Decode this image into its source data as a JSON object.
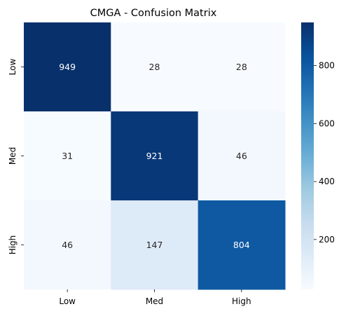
{
  "chart_data": {
    "type": "heatmap",
    "title": "CMGA - Confusion Matrix",
    "xlabel": "",
    "ylabel": "",
    "x_categories": [
      "Low",
      "Med",
      "High"
    ],
    "y_categories": [
      "Low",
      "Med",
      "High"
    ],
    "values": [
      [
        949,
        28,
        28
      ],
      [
        31,
        921,
        46
      ],
      [
        46,
        147,
        804
      ]
    ],
    "colormap": "Blues",
    "vmin": 28,
    "vmax": 949,
    "colorbar_ticks": [
      200,
      400,
      600,
      800
    ],
    "colorbar_tick_labels": [
      "200",
      "400",
      "600",
      "800"
    ],
    "colorbar": true,
    "grid": false,
    "annotation_light_color": "#ffffff",
    "annotation_dark_color": "#262626"
  }
}
